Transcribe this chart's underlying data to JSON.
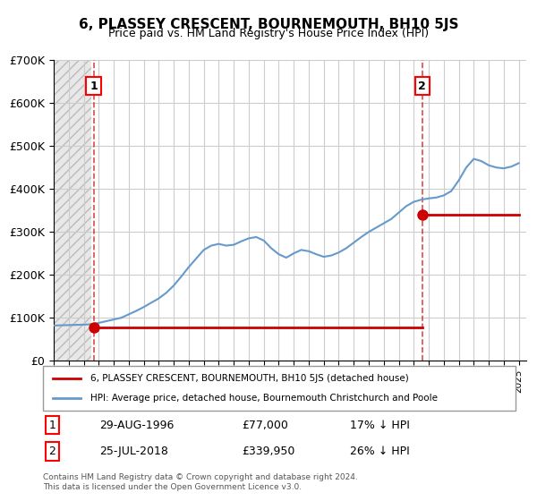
{
  "title": "6, PLASSEY CRESCENT, BOURNEMOUTH, BH10 5JS",
  "subtitle": "Price paid vs. HM Land Registry's House Price Index (HPI)",
  "ylabel_ticks": [
    "£0",
    "£100K",
    "£200K",
    "£300K",
    "£400K",
    "£500K",
    "£600K",
    "£700K"
  ],
  "ylim": [
    0,
    700000
  ],
  "xlim_start": 1994,
  "xlim_end": 2025.5,
  "sale1_year": 1996.66,
  "sale1_price": 77000,
  "sale1_label": "1",
  "sale2_year": 2018.56,
  "sale2_price": 339950,
  "sale2_label": "2",
  "property_color": "#cc0000",
  "hpi_color": "#6699cc",
  "hpi_color_fill": "#aaccee",
  "hatched_end_year": 1996.5,
  "legend_property": "6, PLASSEY CRESCENT, BOURNEMOUTH, BH10 5JS (detached house)",
  "legend_hpi": "HPI: Average price, detached house, Bournemouth Christchurch and Poole",
  "table_row1": [
    "1",
    "29-AUG-1996",
    "£77,000",
    "17% ↓ HPI"
  ],
  "table_row2": [
    "2",
    "25-JUL-2018",
    "£339,950",
    "26% ↓ HPI"
  ],
  "footnote": "Contains HM Land Registry data © Crown copyright and database right 2024.\nThis data is licensed under the Open Government Licence v3.0.",
  "background_color": "#ffffff",
  "grid_color": "#cccccc",
  "hatch_color": "#cccccc"
}
